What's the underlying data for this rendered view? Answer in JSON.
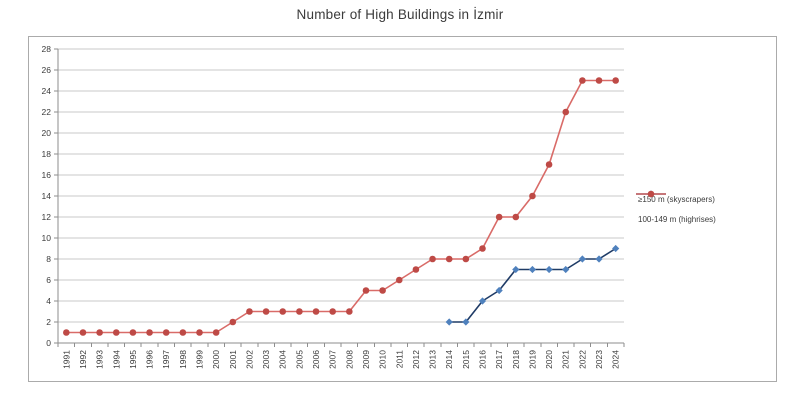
{
  "chart_data": {
    "type": "line",
    "title": "Number of High Buildings in İzmir",
    "x": [
      1991,
      1992,
      1993,
      1994,
      1995,
      1996,
      1997,
      1998,
      1999,
      2000,
      2001,
      2002,
      2003,
      2004,
      2005,
      2006,
      2007,
      2008,
      2009,
      2010,
      2011,
      2012,
      2013,
      2014,
      2015,
      2016,
      2017,
      2018,
      2019,
      2020,
      2021,
      2022,
      2023,
      2024
    ],
    "series": [
      {
        "name": "≥150 m (skyscrapers)",
        "marker": "diamond",
        "line_color": "#1f3b66",
        "marker_color": "#4f81bd",
        "values": [
          null,
          null,
          null,
          null,
          null,
          null,
          null,
          null,
          null,
          null,
          null,
          null,
          null,
          null,
          null,
          null,
          null,
          null,
          null,
          null,
          null,
          null,
          null,
          2,
          2,
          4,
          5,
          7,
          7,
          7,
          7,
          8,
          8,
          9
        ]
      },
      {
        "name": "100-149 m (highrises)",
        "marker": "circle",
        "line_color": "#d96b68",
        "marker_color": "#be4a46",
        "values": [
          1,
          1,
          1,
          1,
          1,
          1,
          1,
          1,
          1,
          1,
          2,
          3,
          3,
          3,
          3,
          3,
          3,
          3,
          5,
          5,
          6,
          7,
          8,
          8,
          8,
          9,
          12,
          12,
          14,
          17,
          22,
          25,
          25,
          25
        ]
      }
    ],
    "ylim": [
      0,
      28
    ],
    "ytick_step": 2,
    "yticks": [
      0,
      2,
      4,
      6,
      8,
      10,
      12,
      14,
      16,
      18,
      20,
      22,
      24,
      26,
      28
    ],
    "grid": "horizontal",
    "legend_position": "right",
    "colors": {
      "grid_line": "#c9c9c9",
      "axis_line": "#8e8e8e",
      "tick_label": "#3b3b3b",
      "chart_border": "#ababab"
    }
  }
}
